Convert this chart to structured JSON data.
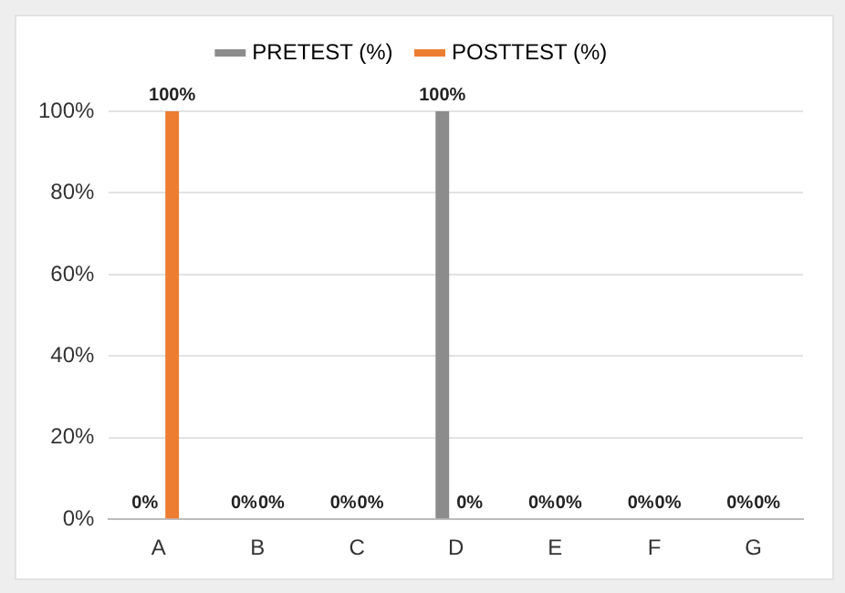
{
  "chart_data": {
    "type": "bar",
    "categories": [
      "A",
      "B",
      "C",
      "D",
      "E",
      "F",
      "G"
    ],
    "series": [
      {
        "name": "PRETEST (%)",
        "color": "#8c8c8c",
        "values": [
          0,
          0,
          0,
          100,
          0,
          0,
          0
        ],
        "value_labels": [
          "0%",
          "0%",
          "0%",
          "100%",
          "0%",
          "0%",
          "0%"
        ]
      },
      {
        "name": "POSTTEST (%)",
        "color": "#ed7d31",
        "values": [
          100,
          0,
          0,
          0,
          0,
          0,
          0
        ],
        "value_labels": [
          "100%",
          "0%",
          "0%",
          "0%",
          "0%",
          "0%",
          "0%"
        ]
      }
    ],
    "ylim": [
      0,
      100
    ],
    "yticks": [
      {
        "value": 0,
        "label": "0%"
      },
      {
        "value": 20,
        "label": "20%"
      },
      {
        "value": 40,
        "label": "40%"
      },
      {
        "value": 60,
        "label": "60%"
      },
      {
        "value": 80,
        "label": "80%"
      },
      {
        "value": 100,
        "label": "100%"
      }
    ],
    "grid": "y",
    "legend": "top"
  }
}
